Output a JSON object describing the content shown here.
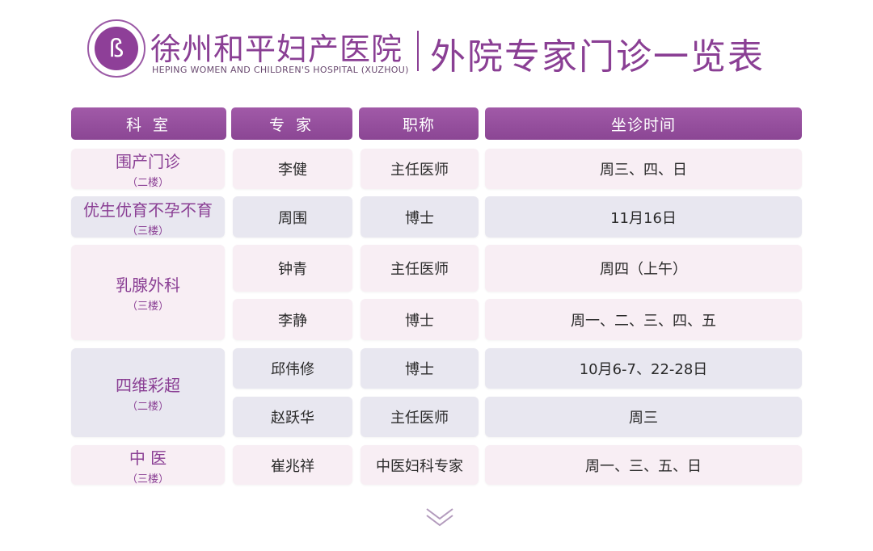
{
  "header": {
    "logo_icon": "hospital-logo",
    "hospital_name": "徐州和平妇产医院",
    "hospital_name_en": "HEPING WOMEN AND CHILDREN'S HOSPITAL (XUZHOU)",
    "title": "外院专家门诊一览表"
  },
  "colors": {
    "accent": "#8a3f94",
    "row_pink": "#f8eef4",
    "row_lavender": "#e8e7f0"
  },
  "table": {
    "columns": [
      "科 室",
      "专 家",
      "职称",
      "坐诊时间"
    ],
    "departments": [
      {
        "name": "围产门诊",
        "floor": "（二楼）"
      },
      {
        "name": "优生优育不孕不育",
        "floor": "（三楼）"
      },
      {
        "name": "乳腺外科",
        "floor": "（三楼）"
      },
      {
        "name": "四维彩超",
        "floor": "（二楼）"
      },
      {
        "name": "中 医",
        "floor": "（三楼）"
      }
    ],
    "rows": [
      {
        "expert": "李健",
        "title": "主任医师",
        "time": "周三、四、日"
      },
      {
        "expert": "周围",
        "title": "博士",
        "time": "11月16日"
      },
      {
        "expert": "钟青",
        "title": "主任医师",
        "time": "周四（上午）"
      },
      {
        "expert": "李静",
        "title": "博士",
        "time": "周一、二、三、四、五"
      },
      {
        "expert": "邱伟修",
        "title": "博士",
        "time": "10月6-7、22-28日"
      },
      {
        "expert": "赵跃华",
        "title": "主任医师",
        "time": "周三"
      },
      {
        "expert": "崔兆祥",
        "title": "中医妇科专家",
        "time": "周一、三、五、日"
      }
    ]
  },
  "footer": {
    "scroll_icon": "chevron-down-icon"
  }
}
